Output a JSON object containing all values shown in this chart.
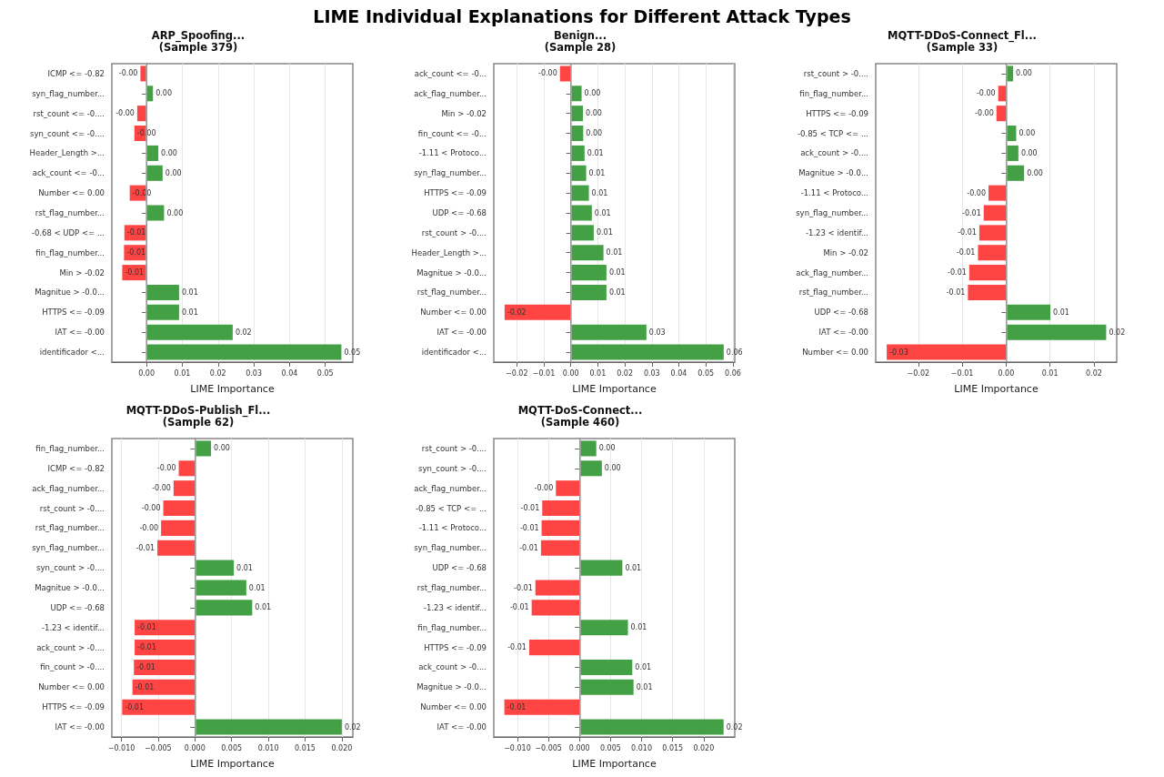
{
  "chart_data": [
    {
      "type": "other",
      "title": "LIME Individual Explanations for Different Attack Types"
    },
    {
      "type": "bar",
      "orientation": "horizontal",
      "title": "ARP_Spoofing...",
      "subtitle": "(Sample 379)",
      "xlabel": "LIME Importance",
      "categories": [
        "ICMP <= -0.82",
        "syn_flag_number...",
        "rst_count <= -0....",
        "syn_count <= -0....",
        "Header_Length >...",
        "ack_count <= -0...",
        "Number <= 0.00",
        "rst_flag_number...",
        "-0.68 < UDP <= ...",
        "fin_flag_number...",
        "Min > -0.02",
        "Magnitue > -0.0...",
        "HTTPS <= -0.09",
        "IAT <= -0.00",
        "identificador <..."
      ],
      "values": [
        -0.0017,
        0.0018,
        -0.0026,
        -0.0034,
        0.0033,
        0.0045,
        -0.0047,
        0.0049,
        -0.0062,
        -0.0063,
        -0.0068,
        0.0091,
        0.0091,
        0.0241,
        0.0545
      ],
      "colors": [
        "#ff4444",
        "#44a044",
        "#ff4444",
        "#ff4444",
        "#44a044",
        "#44a044",
        "#ff4444",
        "#44a044",
        "#ff4444",
        "#ff4444",
        "#ff4444",
        "#44a044",
        "#44a044",
        "#44a044",
        "#44a044"
      ],
      "value_labels": [
        "-0.00",
        "0.00",
        "-0.00",
        "-0.00",
        "0.00",
        "0.00",
        "-0.00",
        "0.00",
        "-0.01",
        "-0.01",
        "-0.01",
        "0.01",
        "0.01",
        "0.02",
        "0.05"
      ],
      "xlim": [
        -0.0097,
        0.0577
      ],
      "xticks": [
        {
          "value": 0,
          "label": "0.00"
        },
        {
          "value": 0.01,
          "label": "0.01"
        },
        {
          "value": 0.02,
          "label": "0.02"
        },
        {
          "value": 0.03,
          "label": "0.03"
        },
        {
          "value": 0.04,
          "label": "0.04"
        },
        {
          "value": 0.05,
          "label": "0.05"
        }
      ],
      "ref_lines": [
        {
          "axis": "x",
          "value": 0,
          "label": null,
          "color": "#aaaaaa"
        }
      ],
      "grid": "x"
    },
    {
      "type": "bar",
      "orientation": "horizontal",
      "title": "Benign...",
      "subtitle": "(Sample 28)",
      "xlabel": "LIME Importance",
      "categories": [
        "ack_count <= -0...",
        "ack_flag_number...",
        "Min > -0.02",
        "fin_count <= -0...",
        "-1.11 < Protoco...",
        "syn_flag_number...",
        "HTTPS <= -0.09",
        "UDP <= -0.68",
        "rst_count > -0....",
        "Header_Length >...",
        "Magnitue > -0.0...",
        "rst_flag_number...",
        "Number <= 0.00",
        "IAT <= -0.00",
        "identificador <..."
      ],
      "values": [
        -0.004,
        0.004,
        0.0045,
        0.0046,
        0.0051,
        0.0057,
        0.0067,
        0.0078,
        0.0085,
        0.0121,
        0.0132,
        0.0132,
        -0.0245,
        0.028,
        0.0566
      ],
      "colors": [
        "#ff4444",
        "#44a044",
        "#44a044",
        "#44a044",
        "#44a044",
        "#44a044",
        "#44a044",
        "#44a044",
        "#44a044",
        "#44a044",
        "#44a044",
        "#44a044",
        "#ff4444",
        "#44a044",
        "#44a044"
      ],
      "value_labels": [
        "-0.00",
        "0.00",
        "0.00",
        "0.00",
        "0.01",
        "0.01",
        "0.01",
        "0.01",
        "0.01",
        "0.01",
        "0.01",
        "0.01",
        "-0.02",
        "0.03",
        "0.06"
      ],
      "xlim": [
        -0.0285,
        0.0607
      ],
      "xticks": [
        {
          "value": -0.02,
          "label": "−0.02"
        },
        {
          "value": -0.01,
          "label": "−0.01"
        },
        {
          "value": 0,
          "label": "0.00"
        },
        {
          "value": 0.01,
          "label": "0.01"
        },
        {
          "value": 0.02,
          "label": "0.02"
        },
        {
          "value": 0.03,
          "label": "0.03"
        },
        {
          "value": 0.04,
          "label": "0.04"
        },
        {
          "value": 0.05,
          "label": "0.05"
        },
        {
          "value": 0.06,
          "label": "0.06"
        }
      ],
      "ref_lines": [
        {
          "axis": "x",
          "value": 0,
          "label": null,
          "color": "#aaaaaa"
        }
      ],
      "grid": "x"
    },
    {
      "type": "bar",
      "orientation": "horizontal",
      "title": "MQTT-DDoS-Connect_Fl...",
      "subtitle": "(Sample 33)",
      "xlabel": "LIME Importance",
      "categories": [
        "rst_count > -0....",
        "fin_flag_number...",
        "HTTPS <= -0.09",
        "-0.85 < TCP <= ...",
        "ack_count > -0....",
        "Magnitue > -0.0...",
        "-1.11 < Protoco...",
        "syn_flag_number...",
        "-1.23 < identif...",
        "Min > -0.02",
        "ack_flag_number...",
        "rst_flag_number...",
        "UDP <= -0.68",
        "IAT <= -0.00",
        "Number <= 0.00"
      ],
      "values": [
        0.0016,
        -0.0018,
        -0.0022,
        0.0023,
        0.0028,
        0.0041,
        -0.004,
        -0.0051,
        -0.0061,
        -0.0064,
        -0.0084,
        -0.0087,
        0.0101,
        0.0228,
        -0.0272
      ],
      "colors": [
        "#44a044",
        "#ff4444",
        "#ff4444",
        "#44a044",
        "#44a044",
        "#44a044",
        "#ff4444",
        "#ff4444",
        "#ff4444",
        "#ff4444",
        "#ff4444",
        "#ff4444",
        "#44a044",
        "#44a044",
        "#ff4444"
      ],
      "value_labels": [
        "0.00",
        "-0.00",
        "-0.00",
        "0.00",
        "0.00",
        "0.00",
        "-0.00",
        "-0.01",
        "-0.01",
        "-0.01",
        "-0.01",
        "-0.01",
        "0.01",
        "0.02",
        "-0.03"
      ],
      "xlim": [
        -0.0297,
        0.0252
      ],
      "xticks": [
        {
          "value": -0.02,
          "label": "−0.02"
        },
        {
          "value": -0.01,
          "label": "−0.01"
        },
        {
          "value": 0,
          "label": "0.00"
        },
        {
          "value": 0.01,
          "label": "0.01"
        },
        {
          "value": 0.02,
          "label": "0.02"
        }
      ],
      "ref_lines": [
        {
          "axis": "x",
          "value": 0,
          "label": null,
          "color": "#aaaaaa"
        }
      ],
      "grid": "x"
    },
    {
      "type": "bar",
      "orientation": "horizontal",
      "title": "MQTT-DDoS-Publish_Fl...",
      "subtitle": "(Sample 62)",
      "xlabel": "LIME Importance",
      "categories": [
        "fin_flag_number...",
        "ICMP <= -0.82",
        "ack_flag_number...",
        "rst_count > -0....",
        "rst_flag_number...",
        "syn_flag_number...",
        "syn_count > -0....",
        "Magnitue > -0.0...",
        "UDP <= -0.68",
        "-1.23 < identif...",
        "ack_count > -0....",
        "fin_count > -0....",
        "Number <= 0.00",
        "HTTPS <= -0.09",
        "IAT <= -0.00"
      ],
      "values": [
        0.0022,
        -0.0022,
        -0.0029,
        -0.0043,
        -0.0046,
        -0.0051,
        0.0053,
        0.007,
        0.0078,
        -0.0082,
        -0.0082,
        -0.0083,
        -0.0085,
        -0.0099,
        0.02
      ],
      "colors": [
        "#44a044",
        "#ff4444",
        "#ff4444",
        "#ff4444",
        "#ff4444",
        "#ff4444",
        "#44a044",
        "#44a044",
        "#44a044",
        "#ff4444",
        "#ff4444",
        "#ff4444",
        "#ff4444",
        "#ff4444",
        "#44a044"
      ],
      "value_labels": [
        "0.00",
        "-0.00",
        "-0.00",
        "-0.00",
        "-0.00",
        "-0.01",
        "0.01",
        "0.01",
        "0.01",
        "-0.01",
        "-0.01",
        "-0.01",
        "-0.01",
        "-0.01",
        "0.02"
      ],
      "xlim": [
        -0.0113,
        0.0215
      ],
      "xticks": [
        {
          "value": -0.01,
          "label": "−0.010"
        },
        {
          "value": -0.005,
          "label": "−0.005"
        },
        {
          "value": 0,
          "label": "0.000"
        },
        {
          "value": 0.005,
          "label": "0.005"
        },
        {
          "value": 0.01,
          "label": "0.010"
        },
        {
          "value": 0.015,
          "label": "0.015"
        },
        {
          "value": 0.02,
          "label": "0.020"
        }
      ],
      "ref_lines": [
        {
          "axis": "x",
          "value": 0,
          "label": null,
          "color": "#aaaaaa"
        }
      ],
      "grid": "x"
    },
    {
      "type": "bar",
      "orientation": "horizontal",
      "title": "MQTT-DoS-Connect...",
      "subtitle": "(Sample 460)",
      "xlabel": "LIME Importance",
      "categories": [
        "rst_count > -0....",
        "syn_count > -0....",
        "ack_flag_number...",
        "-0.85 < TCP <= ...",
        "-1.11 < Protoco...",
        "syn_flag_number...",
        "UDP <= -0.68",
        "rst_flag_number...",
        "-1.23 < identif...",
        "fin_flag_number...",
        "HTTPS <= -0.09",
        "ack_count > -0....",
        "Magnitue > -0.0...",
        "Number <= 0.00",
        "IAT <= -0.00"
      ],
      "values": [
        0.0027,
        0.0036,
        -0.0038,
        -0.006,
        -0.0061,
        -0.0062,
        0.0069,
        -0.0071,
        -0.0077,
        0.0078,
        -0.0081,
        0.0085,
        0.0087,
        -0.0121,
        0.0232
      ],
      "colors": [
        "#44a044",
        "#44a044",
        "#ff4444",
        "#ff4444",
        "#ff4444",
        "#ff4444",
        "#44a044",
        "#ff4444",
        "#ff4444",
        "#44a044",
        "#ff4444",
        "#44a044",
        "#44a044",
        "#ff4444",
        "#44a044"
      ],
      "value_labels": [
        "0.00",
        "0.00",
        "-0.00",
        "-0.01",
        "-0.01",
        "-0.01",
        "0.01",
        "-0.01",
        "-0.01",
        "0.01",
        "-0.01",
        "0.01",
        "0.01",
        "-0.01",
        "0.02"
      ],
      "xlim": [
        -0.0138,
        0.025
      ],
      "xticks": [
        {
          "value": -0.01,
          "label": "−0.010"
        },
        {
          "value": -0.005,
          "label": "−0.005"
        },
        {
          "value": 0,
          "label": "0.000"
        },
        {
          "value": 0.005,
          "label": "0.005"
        },
        {
          "value": 0.01,
          "label": "0.010"
        },
        {
          "value": 0.015,
          "label": "0.015"
        },
        {
          "value": 0.02,
          "label": "0.020"
        }
      ],
      "ref_lines": [
        {
          "axis": "x",
          "value": 0,
          "label": null,
          "color": "#aaaaaa"
        }
      ],
      "grid": "x"
    }
  ]
}
